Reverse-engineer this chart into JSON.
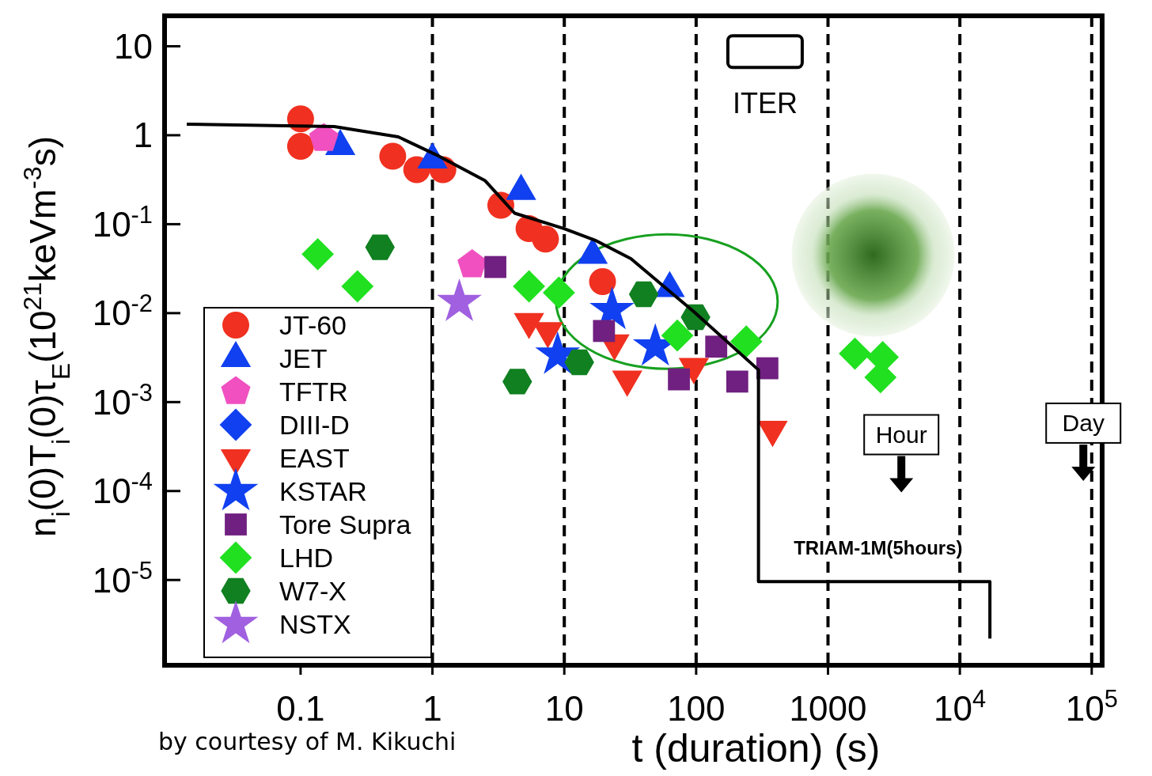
{
  "chart_data": {
    "type": "scatter",
    "xlabel": "t (duration) (s)",
    "ylabel": "n$_{i}$(0)T$_{i}$(0)τ$_{E}$(10$^{21}$keVm$^{-3}$s)",
    "log": "xy",
    "xlim": [
      0.0093,
      120000
    ],
    "ylim": [
      1.1e-06,
      22
    ],
    "xticks": [
      0.1,
      1,
      10,
      100,
      1000,
      {
        "value": 10000,
        "label": "10$^{4}$"
      },
      {
        "value": 100000,
        "label": "10$^{5}$"
      }
    ],
    "yticks": [
      10,
      1,
      {
        "value": 0.1,
        "label": "10$^{-1}$"
      },
      {
        "value": 0.01,
        "label": "10$^{-2}$"
      },
      {
        "value": 0.001,
        "label": "10$^{-3}$"
      },
      {
        "value": 0.0001,
        "label": "10$^{-4}$"
      },
      {
        "value": 1e-05,
        "label": "10$^{-5}$"
      }
    ],
    "grid": false,
    "legend": "bottom left",
    "series": [
      {
        "type": "line",
        "color": "#000000",
        "marker": "none",
        "line_style": "solid",
        "x": [
          0.0137,
          0.18,
          0.55,
          1.05,
          2.5,
          4.2,
          10,
          17.5,
          32,
          96,
          297,
          297,
          16900,
          16900
        ],
        "values": [
          1.33,
          1.25,
          0.96,
          0.61,
          0.31,
          0.133,
          0.089,
          0.065,
          0.041,
          0.0104,
          0.0023,
          9.6e-06,
          9.6e-06,
          2.2e-06
        ]
      },
      {
        "name": "JT-60",
        "color": "#f03020",
        "marker": "circle",
        "x": [
          0.1,
          0.1,
          0.5,
          0.76,
          1.2,
          3.3,
          5.4,
          7.2,
          19.5
        ],
        "values": [
          1.53,
          0.75,
          0.58,
          0.41,
          0.41,
          0.163,
          0.089,
          0.068,
          0.0226
        ]
      },
      {
        "name": "JET",
        "color": "#1040f0",
        "marker": "triangle",
        "x": [
          0.2,
          1.0,
          4.7,
          16.4,
          63
        ],
        "values": [
          0.75,
          0.53,
          0.235,
          0.045,
          0.019
        ]
      },
      {
        "name": "TFTR",
        "color": "#f050c0",
        "x": [
          0.15,
          2.0
        ],
        "values": [
          0.92,
          0.035
        ]
      },
      {
        "name": "DIII-D",
        "color": "#1040f0",
        "marker": "diamond"
      },
      {
        "name": "EAST",
        "color": "#f03020",
        "marker": "triangle-down",
        "x": [
          5.4,
          7.5,
          24,
          30,
          96,
          380
        ],
        "values": [
          0.008,
          0.0063,
          0.0046,
          0.0018,
          0.0025,
          0.00049
        ]
      },
      {
        "name": "KSTAR",
        "color": "#1040f0",
        "marker": "star",
        "x": [
          23,
          8.9,
          49
        ],
        "values": [
          0.0108,
          0.0034,
          0.0042
        ]
      },
      {
        "name": "Tore Supra",
        "color": "#702080",
        "marker": "square",
        "x": [
          3.0,
          20,
          74,
          142,
          205,
          347
        ],
        "values": [
          0.033,
          0.0063,
          0.0018,
          0.0042,
          0.0017,
          0.0024
        ]
      },
      {
        "name": "LHD",
        "color": "#20e020",
        "marker": "diamond",
        "x": [
          0.135,
          0.27,
          5.4,
          9.1,
          72,
          240,
          1600,
          2600,
          2500
        ],
        "values": [
          0.046,
          0.02,
          0.02,
          0.017,
          0.0056,
          0.0048,
          0.0035,
          0.0032,
          0.0019
        ]
      },
      {
        "name": "W7-X",
        "color": "#108020",
        "x": [
          0.4,
          4.4,
          13,
          40,
          99
        ],
        "values": [
          0.055,
          0.0017,
          0.0028,
          0.0163,
          0.009
        ]
      },
      {
        "name": "NSTX",
        "color": "#a060e0",
        "marker": "star",
        "x": [
          1.6
        ],
        "values": [
          0.0133
        ]
      }
    ],
    "ref_lines": [
      {
        "axis": "x",
        "value": 1,
        "color": "#000000",
        "line_style": "dashed"
      },
      {
        "axis": "x",
        "value": 10,
        "color": "#000000",
        "line_style": "dashed"
      },
      {
        "axis": "x",
        "value": 100,
        "color": "#000000",
        "line_style": "dashed"
      },
      {
        "axis": "x",
        "value": 1000,
        "color": "#000000",
        "line_style": "dashed"
      },
      {
        "axis": "x",
        "value": 10000,
        "color": "#000000",
        "line_style": "dashed"
      },
      {
        "axis": "x",
        "value": 100000,
        "color": "#000000",
        "line_style": "dashed"
      }
    ],
    "annotations": [
      "ITER",
      "Hour",
      "Day",
      "TRIAM-1M(5hours)",
      "by courtesy of M. Kikuchi"
    ]
  }
}
